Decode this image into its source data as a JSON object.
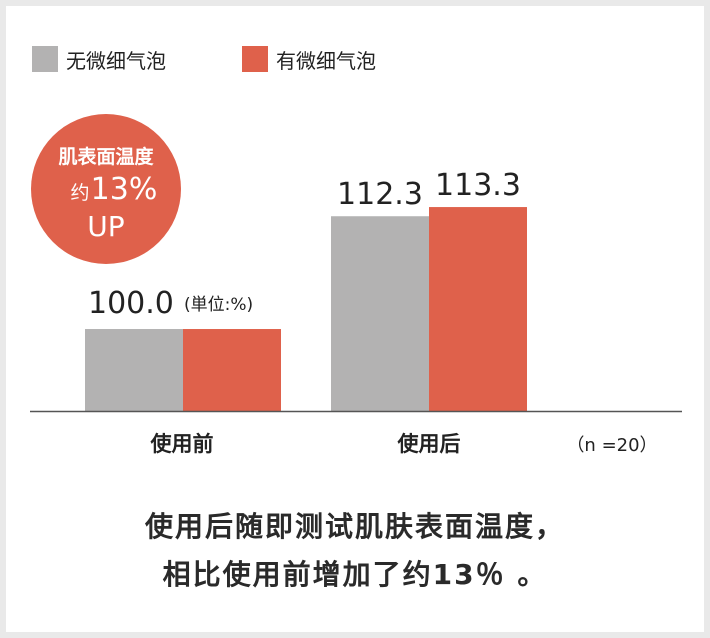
{
  "chart_data": {
    "type": "bar",
    "categories": [
      "使用前",
      "使用后"
    ],
    "series": [
      {
        "name": "无微细气泡",
        "values": [
          100.0,
          112.3
        ],
        "color": "#b3b2b2",
        "labels": [
          "",
          "112.3"
        ]
      },
      {
        "name": "有微细气泡",
        "values": [
          100.0,
          113.3
        ],
        "color": "#df614b",
        "labels": [
          "",
          "113.3"
        ]
      }
    ],
    "baseline_label": "100.0",
    "unit_label": "(単位:%)",
    "sample_note": "（n =20）",
    "title": "",
    "xlabel": "",
    "ylabel": "",
    "grid": false,
    "legend_position": "top-left"
  },
  "badge": {
    "line1": "肌表面温度",
    "line2_prefix": "约",
    "line2_value": "13%",
    "line3": "UP",
    "color": "#df614b"
  },
  "caption": {
    "line1": "使用后随即测试肌肤表面温度，",
    "line2": "相比使用前增加了约13％ 。"
  }
}
